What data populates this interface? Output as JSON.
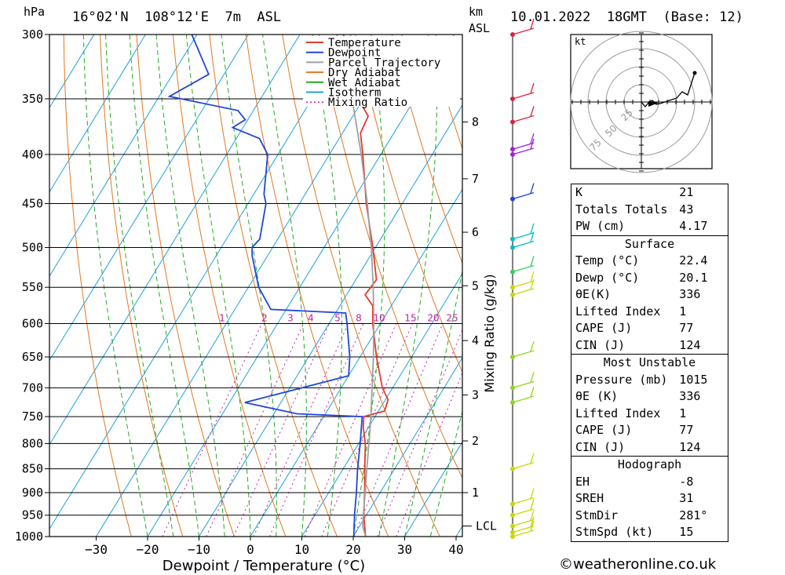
{
  "header": {
    "unit_hpa": "hPa",
    "location": "16°02'N  108°12'E  7m  ASL",
    "unit_km": "km",
    "unit_asl": "ASL",
    "datetime": "10.01.2022  18GMT  (Base: 12)"
  },
  "chart_data": {
    "type": "line",
    "subtype": "skew-T log-P diagram",
    "xlabel": "Dewpoint / Temperature (°C)",
    "ylabel_right": "Mixing Ratio (g/kg)",
    "pressure_ticks": [
      300,
      350,
      400,
      450,
      500,
      550,
      600,
      650,
      700,
      750,
      800,
      850,
      900,
      950,
      1000
    ],
    "temp_ticks": [
      -30,
      -20,
      -10,
      0,
      10,
      20,
      30,
      40
    ],
    "km_ticks": [
      {
        "km": "1",
        "p": 900
      },
      {
        "km": "2",
        "p": 795
      },
      {
        "km": "3",
        "p": 712
      },
      {
        "km": "4",
        "p": 625
      },
      {
        "km": "5",
        "p": 548
      },
      {
        "km": "6",
        "p": 482
      },
      {
        "km": "7",
        "p": 424
      },
      {
        "km": "8",
        "p": 370
      }
    ],
    "lcl": {
      "label": "LCL",
      "p": 975
    },
    "mixing_ratio_labels": [
      "1",
      "2",
      "3",
      "4",
      "5",
      "8",
      "10",
      "15",
      "20",
      "25"
    ],
    "legend": [
      {
        "name": "Temperature",
        "color": "#e8392b",
        "dash": false
      },
      {
        "name": "Dewpoint",
        "color": "#2046dc",
        "dash": false
      },
      {
        "name": "Parcel Trajectory",
        "color": "#a0a0a0",
        "dash": false
      },
      {
        "name": "Dry Adiabat",
        "color": "#e07820",
        "dash": false
      },
      {
        "name": "Wet Adiabat",
        "color": "#22aa22",
        "dash": true
      },
      {
        "name": "Isotherm",
        "color": "#20a0e0",
        "dash": false
      },
      {
        "name": "Mixing Ratio",
        "color": "#c020a0",
        "dash": true
      }
    ],
    "series": [
      {
        "name": "Temperature",
        "color": "#e8392b",
        "points": [
          [
            1000,
            22.4
          ],
          [
            950,
            19.5
          ],
          [
            900,
            17.0
          ],
          [
            850,
            14.2
          ],
          [
            800,
            11.3
          ],
          [
            770,
            9.0
          ],
          [
            750,
            7.8
          ],
          [
            740,
            11.2
          ],
          [
            720,
            10.5
          ],
          [
            700,
            8.0
          ],
          [
            650,
            3.2
          ],
          [
            600,
            -1.5
          ],
          [
            575,
            -3.6
          ],
          [
            560,
            -6.4
          ],
          [
            540,
            -6.0
          ],
          [
            500,
            -10.5
          ],
          [
            450,
            -17.0
          ],
          [
            400,
            -23.5
          ],
          [
            380,
            -26.5
          ],
          [
            365,
            -27.0
          ],
          [
            350,
            -31.0
          ],
          [
            300,
            -41.5
          ]
        ]
      },
      {
        "name": "Dewpoint",
        "color": "#2046dc",
        "points": [
          [
            1000,
            20.1
          ],
          [
            950,
            17.7
          ],
          [
            900,
            15.4
          ],
          [
            850,
            12.8
          ],
          [
            800,
            10.3
          ],
          [
            750,
            7.5
          ],
          [
            745,
            -5.5
          ],
          [
            725,
            -17.0
          ],
          [
            680,
            0.0
          ],
          [
            650,
            -2.0
          ],
          [
            600,
            -6.5
          ],
          [
            585,
            -8.0
          ],
          [
            580,
            -23.0
          ],
          [
            550,
            -28.0
          ],
          [
            510,
            -33.0
          ],
          [
            500,
            -34.0
          ],
          [
            490,
            -33.5
          ],
          [
            450,
            -36.5
          ],
          [
            440,
            -38.0
          ],
          [
            400,
            -42.0
          ],
          [
            385,
            -45.5
          ],
          [
            375,
            -52.0
          ],
          [
            368,
            -50.5
          ],
          [
            360,
            -53.0
          ],
          [
            348,
            -68.0
          ],
          [
            330,
            -63.0
          ],
          [
            300,
            -71.0
          ]
        ]
      },
      {
        "name": "Parcel Trajectory",
        "color": "#a0a0a0",
        "points": [
          [
            1000,
            22.4
          ],
          [
            975,
            20.6
          ],
          [
            950,
            19.4
          ],
          [
            900,
            17.1
          ],
          [
            850,
            14.6
          ],
          [
            800,
            12.0
          ],
          [
            750,
            9.2
          ],
          [
            700,
            6.0
          ],
          [
            650,
            2.6
          ],
          [
            600,
            -1.3
          ],
          [
            550,
            -5.7
          ],
          [
            500,
            -10.8
          ],
          [
            450,
            -16.8
          ],
          [
            400,
            -23.8
          ],
          [
            350,
            -32.2
          ],
          [
            300,
            -42.8
          ]
        ]
      }
    ],
    "winds": [
      {
        "p": 1000,
        "color": "#c8d800"
      },
      {
        "p": 990,
        "color": "#c8d800"
      },
      {
        "p": 975,
        "color": "#c8d800"
      },
      {
        "p": 950,
        "color": "#c8d800"
      },
      {
        "p": 925,
        "color": "#c8d800"
      },
      {
        "p": 850,
        "color": "#c8d800"
      },
      {
        "p": 725,
        "color": "#8ad820"
      },
      {
        "p": 700,
        "color": "#8ad820"
      },
      {
        "p": 650,
        "color": "#8ad820"
      },
      {
        "p": 560,
        "color": "#c8d800"
      },
      {
        "p": 550,
        "color": "#c8d800"
      },
      {
        "p": 530,
        "color": "#30d060"
      },
      {
        "p": 500,
        "color": "#00c0c0"
      },
      {
        "p": 490,
        "color": "#00c0c0"
      },
      {
        "p": 445,
        "color": "#2040e0"
      },
      {
        "p": 400,
        "color": "#a020e0"
      },
      {
        "p": 395,
        "color": "#a020e0"
      },
      {
        "p": 370,
        "color": "#e02040"
      },
      {
        "p": 350,
        "color": "#e02040"
      },
      {
        "p": 300,
        "color": "#e02040"
      }
    ]
  },
  "hodograph": {
    "unit": "kt",
    "ring_labels": [
      "25",
      "50",
      "75"
    ]
  },
  "indices": [
    {
      "k": "K",
      "v": "21"
    },
    {
      "k": "Totals Totals",
      "v": "43"
    },
    {
      "k": "PW (cm)",
      "v": "4.17"
    }
  ],
  "surface": {
    "title": "Surface",
    "rows": [
      {
        "k": "Temp (°C)",
        "v": "22.4"
      },
      {
        "k": "Dewp (°C)",
        "v": "20.1"
      },
      {
        "k": "θE(K)",
        "v": "336"
      },
      {
        "k": "Lifted Index",
        "v": "1"
      },
      {
        "k": "CAPE (J)",
        "v": "77"
      },
      {
        "k": "CIN (J)",
        "v": "124"
      }
    ]
  },
  "most_unstable": {
    "title": "Most Unstable",
    "rows": [
      {
        "k": "Pressure (mb)",
        "v": "1015"
      },
      {
        "k": "θE (K)",
        "v": "336"
      },
      {
        "k": "Lifted Index",
        "v": "1"
      },
      {
        "k": "CAPE (J)",
        "v": "77"
      },
      {
        "k": "CIN (J)",
        "v": "124"
      }
    ]
  },
  "hodo_table": {
    "title": "Hodograph",
    "rows": [
      {
        "k": "EH",
        "v": "-8"
      },
      {
        "k": "SREH",
        "v": "31"
      },
      {
        "k": "StmDir",
        "v": "281°"
      },
      {
        "k": "StmSpd (kt)",
        "v": "15"
      }
    ]
  },
  "credit": "©weatheronline.co.uk"
}
